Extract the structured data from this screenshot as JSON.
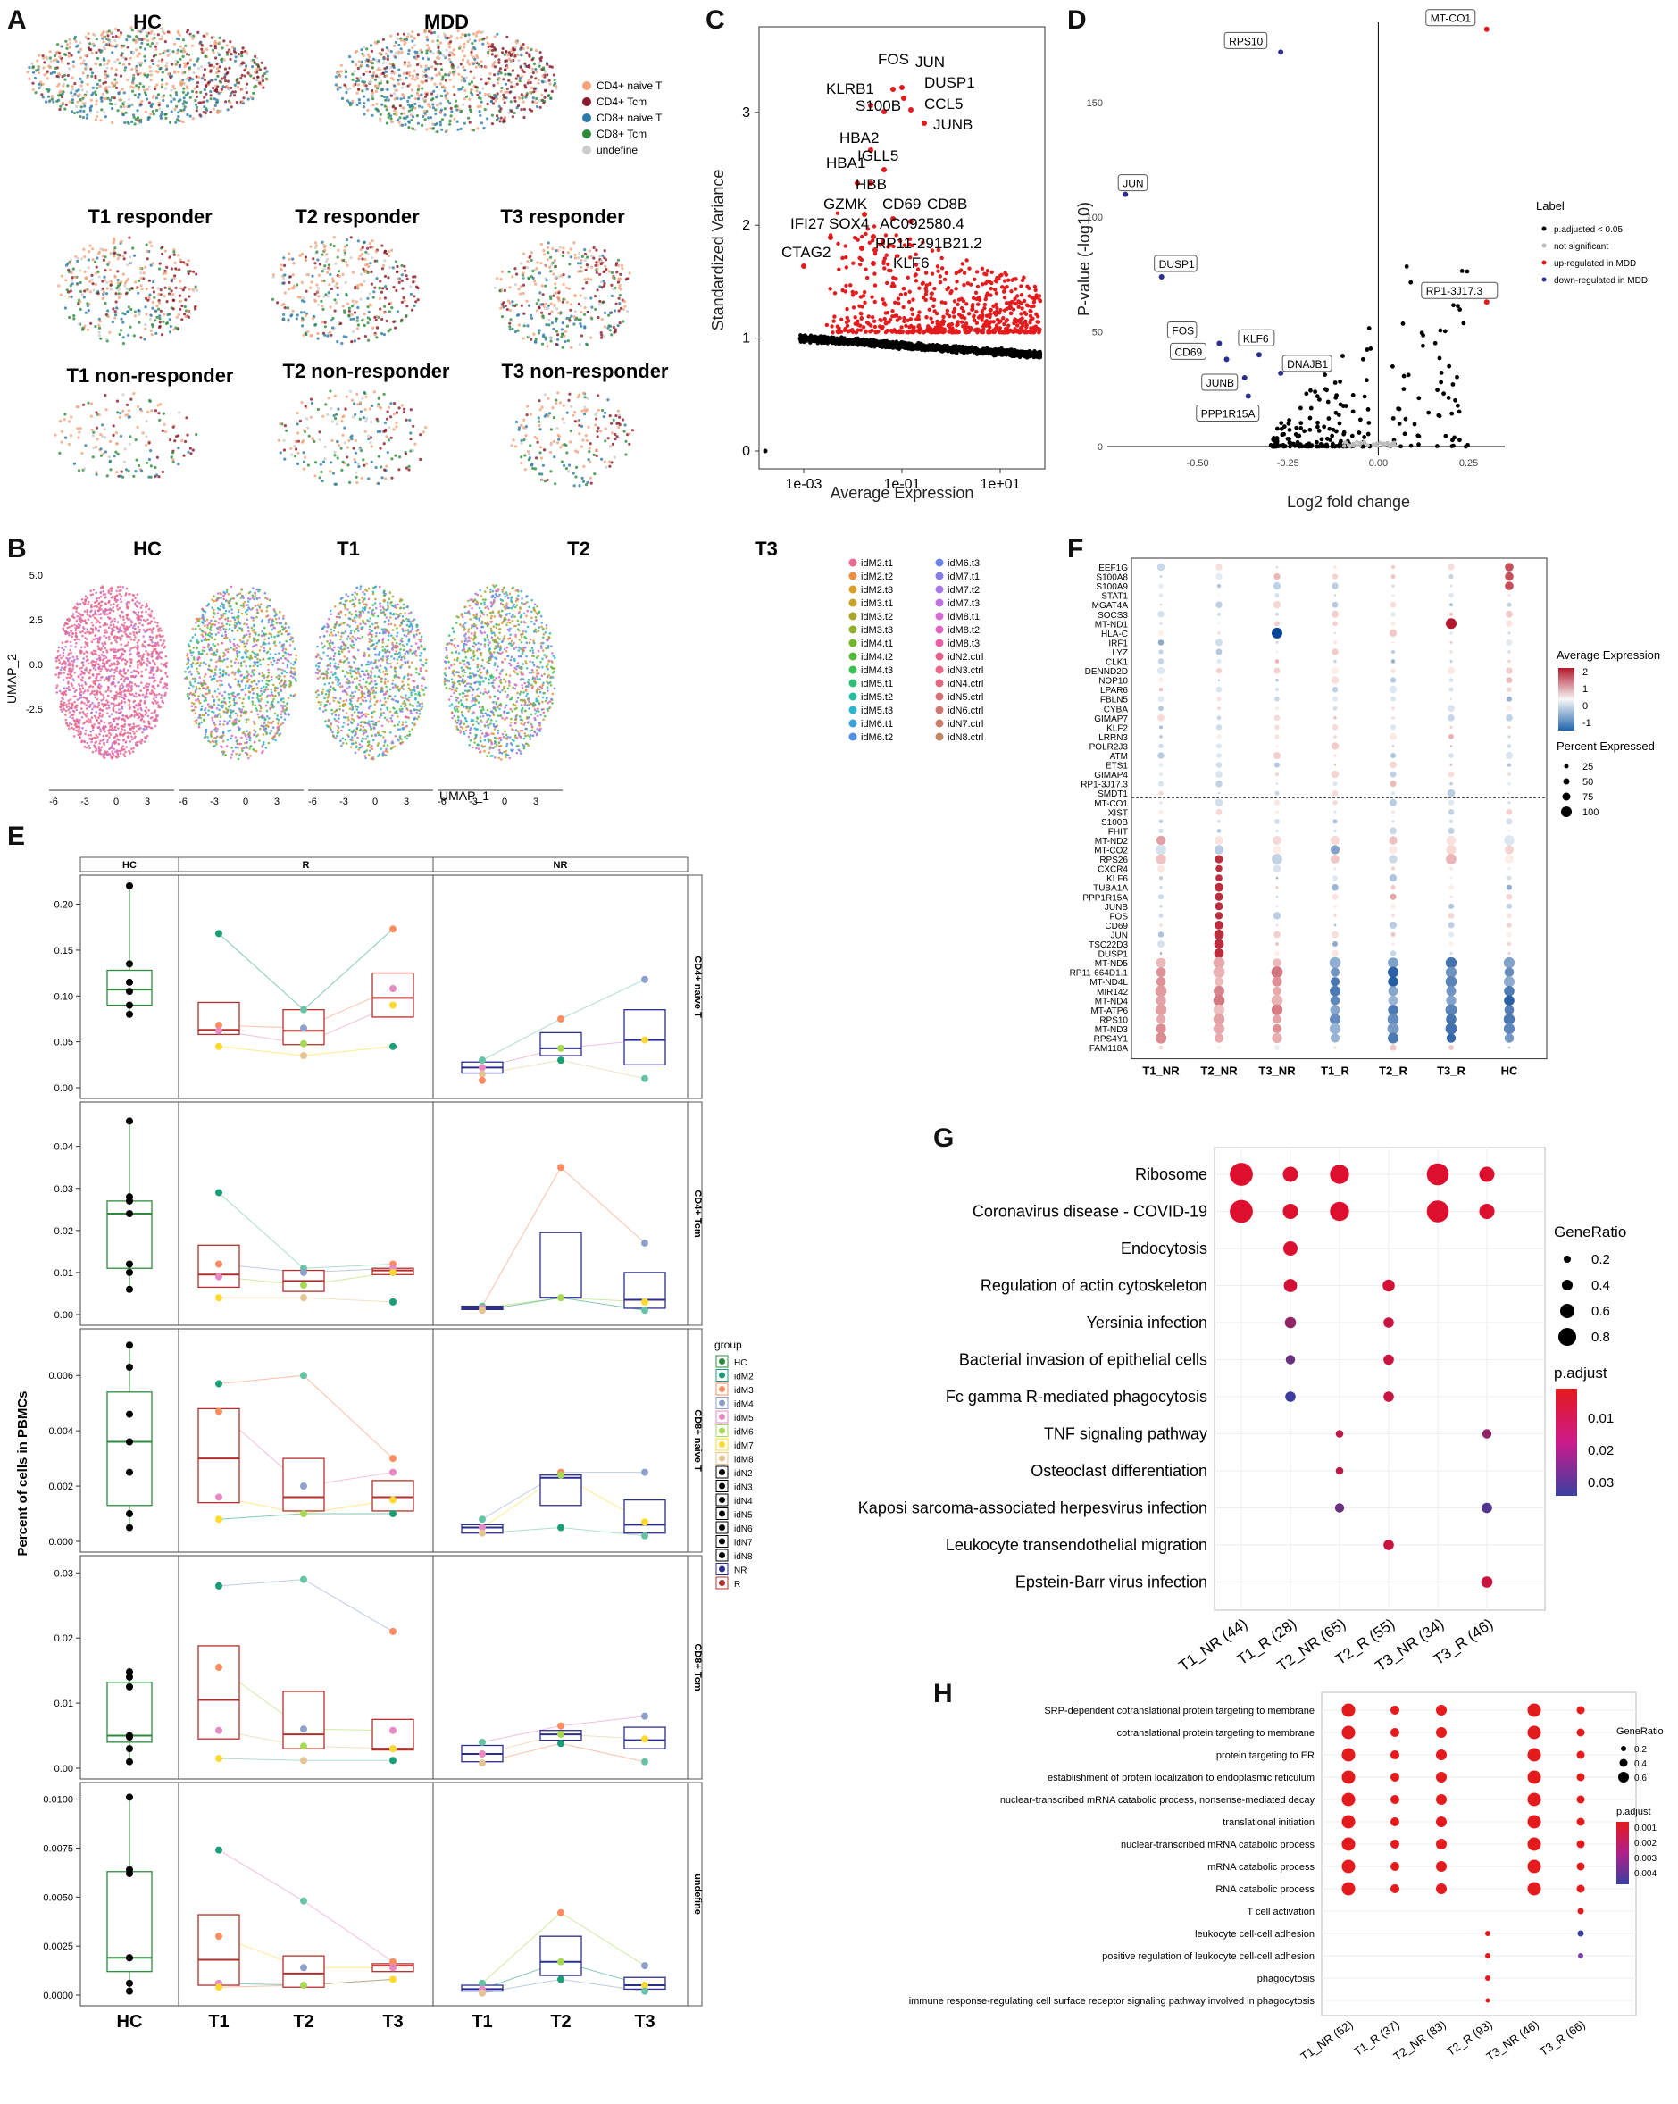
{
  "colors": {
    "cd4_naive": "#f2a27a",
    "cd4_tcm": "#8b1a2b",
    "cd8_naive": "#2a7ba8",
    "cd8_tcm": "#2e8b3c",
    "undefine": "#cccccc",
    "red": "#e41a1c",
    "blue": "#2b2e8c",
    "black": "#000000"
  },
  "panel_a": {
    "label": "A",
    "titles": [
      "HC",
      "MDD",
      "T1 responder",
      "T2 responder",
      "T3 responder",
      "T1 non-responder",
      "T2 non-responder",
      "T3 non-responder"
    ],
    "legend": [
      "CD4+ naive T",
      "CD4+ Tcm",
      "CD8+ naive T",
      "CD8+ Tcm",
      "undefine"
    ]
  },
  "panel_b": {
    "label": "B",
    "titles": [
      "HC",
      "T1",
      "T2",
      "T3"
    ],
    "xlabel": "UMAP_1",
    "ylabel": "UMAP_2",
    "yticks": [
      "5.0",
      "2.5",
      "0.0",
      "-2.5"
    ],
    "xticks": [
      "-6",
      "-3",
      "0",
      "3"
    ],
    "legend_col1": [
      "idM2.t1",
      "idM2.t2",
      "idM2.t3",
      "idM3.t1",
      "idM3.t2",
      "idM3.t3",
      "idM4.t1",
      "idM4.t2",
      "idM4.t3",
      "idM5.t1",
      "idM5.t2",
      "idM5.t3",
      "idM6.t1",
      "idM6.t2"
    ],
    "legend_col2": [
      "idM6.t3",
      "idM7.t1",
      "idM7.t2",
      "idM7.t3",
      "idM8.t1",
      "idM8.t2",
      "idM8.t3",
      "idN2.ctrl",
      "idN3.ctrl",
      "idN4.ctrl",
      "idN5.ctrl",
      "idN6.ctrl",
      "idN7.ctrl",
      "idN8.ctrl"
    ]
  },
  "panel_c": {
    "label": "C",
    "chart_data": {
      "type": "scatter",
      "title": "",
      "xlabel": "Average Expression",
      "ylabel": "Standardized Variance",
      "xticks": [
        "1e-03",
        "1e-01",
        "1e+01"
      ],
      "yticks": [
        "0",
        "1",
        "2",
        "3"
      ],
      "ylim": [
        0,
        3.6
      ],
      "labeled_genes": [
        "FOS",
        "JUN",
        "DUSP1",
        "KLRB1",
        "CCL5",
        "S100B",
        "JUNB",
        "HBA2",
        "IGLL5",
        "HBA1",
        "HBB",
        "GZMK",
        "CD69",
        "CD8B",
        "IFI27",
        "SOX4",
        "AC092580.4",
        "RP11-291B21.2",
        "KLF6",
        "CTAG2"
      ]
    }
  },
  "panel_d": {
    "label": "D",
    "chart_data": {
      "type": "scatter",
      "xlabel": "Log2 fold change",
      "ylabel": "P-value (-log10)",
      "xticks": [
        "-0.50",
        "-0.25",
        "0.00",
        "0.25"
      ],
      "yticks": [
        "0",
        "50",
        "100",
        "150"
      ],
      "xlim": [
        -0.75,
        0.35
      ],
      "ylim": [
        0,
        185
      ],
      "labeled_points": [
        {
          "gene": "MT-CO1",
          "x": 0.3,
          "y": 182,
          "dir": "up"
        },
        {
          "gene": "RPS10",
          "x": -0.27,
          "y": 172,
          "dir": "down"
        },
        {
          "gene": "JUN",
          "x": -0.7,
          "y": 110,
          "dir": "down"
        },
        {
          "gene": "DUSP1",
          "x": -0.6,
          "y": 74,
          "dir": "down"
        },
        {
          "gene": "RP1-3J17.3",
          "x": 0.3,
          "y": 63,
          "dir": "up"
        },
        {
          "gene": "FOS",
          "x": -0.44,
          "y": 45,
          "dir": "down"
        },
        {
          "gene": "CD69",
          "x": -0.42,
          "y": 38,
          "dir": "down"
        },
        {
          "gene": "KLF6",
          "x": -0.33,
          "y": 40,
          "dir": "down"
        },
        {
          "gene": "DNAJB1",
          "x": -0.27,
          "y": 32,
          "dir": "down"
        },
        {
          "gene": "JUNB",
          "x": -0.37,
          "y": 30,
          "dir": "down"
        },
        {
          "gene": "PPP1R15A",
          "x": -0.36,
          "y": 22,
          "dir": "down"
        }
      ],
      "legend_title": "Label",
      "legend": [
        "p.adjusted < 0.05",
        "not significant",
        "up-regulated in MDD",
        "down-regulated in MDD"
      ]
    }
  },
  "panel_e": {
    "label": "E",
    "ylabel": "Percent of cells in PBMCs",
    "facets_top": [
      "HC",
      "R",
      "NR"
    ],
    "facets_right": [
      "CD4+ naive T",
      "CD4+ Tcm",
      "CD8+ naive T",
      "CD8+ Tcm",
      "undefine"
    ],
    "xticks": [
      "HC",
      "T1",
      "T2",
      "T3",
      "T1",
      "T2",
      "T3"
    ],
    "legend_title": "group",
    "legend": [
      "HC",
      "idM2",
      "idM3",
      "idM4",
      "idM5",
      "idM6",
      "idM7",
      "idM8",
      "idN2",
      "idN3",
      "idN4",
      "idN5",
      "idN6",
      "idN7",
      "idN8",
      "NR",
      "R"
    ],
    "rows": [
      {
        "yticks": [
          "0.20",
          "0.15",
          "0.10",
          "0.05",
          "0.00"
        ],
        "ymax": 0.22,
        "hc": {
          "box": [
            0.09,
            0.107,
            0.128
          ],
          "whisk": [
            0.08,
            0.22
          ],
          "pts": [
            0.22,
            0.135,
            0.115,
            0.105,
            0.09,
            0.08
          ]
        },
        "r": [
          [
            0.058,
            0.063,
            0.093
          ],
          [
            0.047,
            0.062,
            0.085
          ],
          [
            0.077,
            0.098,
            0.125
          ]
        ],
        "r_pts": [
          [
            0.168,
            0.068,
            0.062,
            0.045
          ],
          [
            0.085,
            0.065,
            0.048,
            0.035
          ],
          [
            0.173,
            0.108,
            0.09,
            0.045
          ]
        ],
        "nr": [
          [
            0.016,
            0.022,
            0.028
          ],
          [
            0.035,
            0.043,
            0.06
          ],
          [
            0.025,
            0.052,
            0.085
          ]
        ],
        "nr_pts": [
          [
            0.03,
            0.022,
            0.015,
            0.008
          ],
          [
            0.075,
            0.043,
            0.03
          ],
          [
            0.118,
            0.052,
            0.01
          ]
        ]
      },
      {
        "yticks": [
          "0.04",
          "0.03",
          "0.02",
          "0.01",
          "0.00"
        ],
        "ymax": 0.048,
        "hc": {
          "box": [
            0.011,
            0.024,
            0.027
          ],
          "whisk": [
            0.006,
            0.046
          ],
          "pts": [
            0.046,
            0.028,
            0.027,
            0.024,
            0.012,
            0.01,
            0.006
          ]
        },
        "r": [
          [
            0.0065,
            0.0095,
            0.0165
          ],
          [
            0.0055,
            0.008,
            0.0105
          ],
          [
            0.0095,
            0.0105,
            0.011
          ]
        ],
        "r_pts": [
          [
            0.029,
            0.012,
            0.009,
            0.004
          ],
          [
            0.011,
            0.01,
            0.007,
            0.004
          ],
          [
            0.012,
            0.011,
            0.01,
            0.003
          ]
        ],
        "nr": [
          [
            0.0012,
            0.0015,
            0.002
          ],
          [
            0.004,
            0.004,
            0.0195
          ],
          [
            0.0015,
            0.0035,
            0.01
          ]
        ],
        "nr_pts": [
          [
            0.002,
            0.0015,
            0.001
          ],
          [
            0.035,
            0.004
          ],
          [
            0.017,
            0.003,
            0.001
          ]
        ]
      },
      {
        "yticks": [
          "0.006",
          "0.004",
          "0.002",
          "0.000"
        ],
        "ymax": 0.0073,
        "hc": {
          "box": [
            0.0013,
            0.0036,
            0.0054
          ],
          "whisk": [
            0.0005,
            0.0071
          ],
          "pts": [
            0.0071,
            0.0063,
            0.0046,
            0.0036,
            0.0025,
            0.001,
            0.0005
          ]
        },
        "r": [
          [
            0.0014,
            0.003,
            0.0048
          ],
          [
            0.0011,
            0.0016,
            0.003
          ],
          [
            0.0011,
            0.0016,
            0.0022
          ]
        ],
        "r_pts": [
          [
            0.0057,
            0.0047,
            0.0016,
            0.0008
          ],
          [
            0.006,
            0.002,
            0.001
          ],
          [
            0.003,
            0.0025,
            0.0015,
            0.001
          ]
        ],
        "nr": [
          [
            0.0003,
            0.0005,
            0.0006
          ],
          [
            0.0013,
            0.0023,
            0.0024
          ],
          [
            0.0003,
            0.0006,
            0.0015
          ]
        ],
        "nr_pts": [
          [
            0.0008,
            0.0005,
            0.0003
          ],
          [
            0.0025,
            0.0024,
            0.0005
          ],
          [
            0.0025,
            0.0007,
            0.0002
          ]
        ]
      },
      {
        "yticks": [
          "0.03",
          "0.02",
          "0.01",
          "0.00"
        ],
        "ymax": 0.031,
        "hc": {
          "box": [
            0.004,
            0.005,
            0.0132
          ],
          "whisk": [
            0.001,
            0.0148
          ],
          "pts": [
            0.0148,
            0.014,
            0.0125,
            0.005,
            0.0048,
            0.003,
            0.001
          ]
        },
        "r": [
          [
            0.0045,
            0.0105,
            0.0188
          ],
          [
            0.003,
            0.0052,
            0.0118
          ],
          [
            0.0028,
            0.003,
            0.0075
          ]
        ],
        "r_pts": [
          [
            0.028,
            0.0155,
            0.0058,
            0.0015
          ],
          [
            0.029,
            0.006,
            0.0034,
            0.0012
          ],
          [
            0.021,
            0.0058,
            0.003,
            0.0012
          ]
        ],
        "nr": [
          [
            0.001,
            0.0022,
            0.0035
          ],
          [
            0.0043,
            0.0052,
            0.0058
          ],
          [
            0.003,
            0.0043,
            0.0063
          ]
        ],
        "nr_pts": [
          [
            0.004,
            0.0022,
            0.0008
          ],
          [
            0.0065,
            0.0052,
            0.0038
          ],
          [
            0.008,
            0.0045,
            0.001
          ]
        ]
      },
      {
        "yticks": [
          "0.0100",
          "0.0075",
          "0.0050",
          "0.0025",
          "0.0000"
        ],
        "ymax": 0.0103,
        "hc": {
          "box": [
            0.0012,
            0.0019,
            0.0063
          ],
          "whisk": [
            0.0002,
            0.0101
          ],
          "pts": [
            0.0101,
            0.0064,
            0.0062,
            0.0019,
            0.0019,
            0.0006,
            0.0002
          ]
        },
        "r": [
          [
            0.0005,
            0.0018,
            0.0041
          ],
          [
            0.0004,
            0.0011,
            0.002
          ],
          [
            0.0012,
            0.0015,
            0.0016
          ]
        ],
        "r_pts": [
          [
            0.0074,
            0.003,
            0.0006,
            0.0004
          ],
          [
            0.0048,
            0.0014,
            0.0005
          ],
          [
            0.0017,
            0.0014,
            0.0008
          ]
        ],
        "nr": [
          [
            0.0002,
            0.0003,
            0.0005
          ],
          [
            0.001,
            0.0017,
            0.003
          ],
          [
            0.0003,
            0.0005,
            0.0009
          ]
        ],
        "nr_pts": [
          [
            0.0006,
            0.0003,
            0.0001
          ],
          [
            0.0042,
            0.0017,
            0.0008
          ],
          [
            0.0015,
            0.0005,
            0.0002
          ]
        ]
      }
    ]
  },
  "panel_f": {
    "label": "F",
    "genes": [
      "EEF1G",
      "S100A8",
      "S100A9",
      "STAT1",
      "MGAT4A",
      "SOCS3",
      "MT-ND1",
      "HLA-C",
      "IRF1",
      "LYZ",
      "CLK1",
      "DENND2D",
      "NOP10",
      "LPAR6",
      "FBLN5",
      "CYBA",
      "GIMAP7",
      "KLF2",
      "LRRN3",
      "POLR2J3",
      "ATM",
      "ETS1",
      "GIMAP4",
      "RP1-3J17.3",
      "SMDT1",
      "MT-CO1",
      "XIST",
      "S100B",
      "FHIT",
      "MT-ND2",
      "MT-CO2",
      "RPS26",
      "CXCR4",
      "KLF6",
      "TUBA1A",
      "PPP1R15A",
      "JUNB",
      "FOS",
      "CD69",
      "JUN",
      "TSC22D3",
      "DUSP1",
      "MT-ND5",
      "RP11-664D1.1",
      "MT-ND4L",
      "MIR142",
      "MT-ND4",
      "MT-ATP6",
      "RPS10",
      "MT-ND3",
      "RPS4Y1",
      "FAM118A"
    ],
    "groups": [
      "T1_NR",
      "T2_NR",
      "T3_NR",
      "T1_R",
      "T2_R",
      "T3_R",
      "HC"
    ],
    "legend_expr_title": "Average Expression",
    "legend_expr_ticks": [
      "2",
      "1",
      "0",
      "-1"
    ],
    "legend_pct_title": "Percent Expressed",
    "legend_pct_ticks": [
      "25",
      "50",
      "75",
      "100"
    ]
  },
  "panel_g": {
    "label": "G",
    "terms": [
      "Ribosome",
      "Coronavirus disease - COVID-19",
      "Endocytosis",
      "Regulation of actin cytoskeleton",
      "Yersinia infection",
      "Bacterial invasion of epithelial cells",
      "Fc gamma R-mediated phagocytosis",
      "TNF signaling pathway",
      "Osteoclast differentiation",
      "Kaposi sarcoma-associated herpesvirus infection",
      "Leukocyte transendothelial migration",
      "Epstein-Barr virus infection"
    ],
    "groups": [
      "T1_NR (44)",
      "T1_R (28)",
      "T2_NR (65)",
      "T2_R (55)",
      "T3_NR (34)",
      "T3_R (46)"
    ],
    "dots": [
      [
        0,
        0,
        0.9,
        0.001
      ],
      [
        0,
        1,
        0.5,
        0.001
      ],
      [
        0,
        2,
        0.7,
        0.001
      ],
      [
        0,
        4,
        0.85,
        0.001
      ],
      [
        0,
        5,
        0.5,
        0.001
      ],
      [
        1,
        0,
        0.9,
        0.001
      ],
      [
        1,
        1,
        0.5,
        0.001
      ],
      [
        1,
        2,
        0.7,
        0.001
      ],
      [
        1,
        4,
        0.85,
        0.001
      ],
      [
        1,
        5,
        0.5,
        0.001
      ],
      [
        2,
        1,
        0.45,
        0.001
      ],
      [
        3,
        1,
        0.4,
        0.003
      ],
      [
        3,
        3,
        0.35,
        0.003
      ],
      [
        4,
        1,
        0.3,
        0.015
      ],
      [
        4,
        3,
        0.25,
        0.005
      ],
      [
        5,
        1,
        0.2,
        0.022
      ],
      [
        5,
        3,
        0.25,
        0.005
      ],
      [
        6,
        1,
        0.25,
        0.03
      ],
      [
        6,
        3,
        0.25,
        0.005
      ],
      [
        7,
        2,
        0.12,
        0.008
      ],
      [
        7,
        5,
        0.2,
        0.015
      ],
      [
        8,
        2,
        0.12,
        0.008
      ],
      [
        9,
        2,
        0.2,
        0.022
      ],
      [
        9,
        5,
        0.25,
        0.026
      ],
      [
        10,
        3,
        0.25,
        0.005
      ],
      [
        11,
        5,
        0.3,
        0.005
      ]
    ],
    "legend_size_title": "GeneRatio",
    "legend_size_ticks": [
      "0.2",
      "0.4",
      "0.6",
      "0.8"
    ],
    "legend_color_title": "p.adjust",
    "legend_color_ticks": [
      "0.01",
      "0.02",
      "0.03"
    ]
  },
  "panel_h": {
    "label": "H",
    "terms": [
      "SRP-dependent cotranslational protein targeting to membrane",
      "cotranslational protein targeting to membrane",
      "protein targeting to ER",
      "establishment of protein localization to endoplasmic reticulum",
      "nuclear-transcribed mRNA catabolic process, nonsense-mediated decay",
      "translational initiation",
      "nuclear-transcribed mRNA catabolic process",
      "mRNA catabolic process",
      "RNA catabolic process",
      "T cell activation",
      "leukocyte cell-cell adhesion",
      "positive regulation of leukocyte cell-cell adhesion",
      "phagocytosis",
      "immune response-regulating cell surface receptor signaling pathway involved in phagocytosis"
    ],
    "groups": [
      "T1_NR (52)",
      "T1_R (37)",
      "T2_NR (83)",
      "T2_R (93)",
      "T3_NR (46)",
      "T3_R (66)"
    ],
    "legend_size_title": "GeneRatio",
    "legend_size_ticks": [
      "0.2",
      "0.4",
      "0.6"
    ],
    "legend_color_title": "p.adjust",
    "legend_color_ticks": [
      "0.001",
      "0.002",
      "0.003",
      "0.004"
    ]
  }
}
